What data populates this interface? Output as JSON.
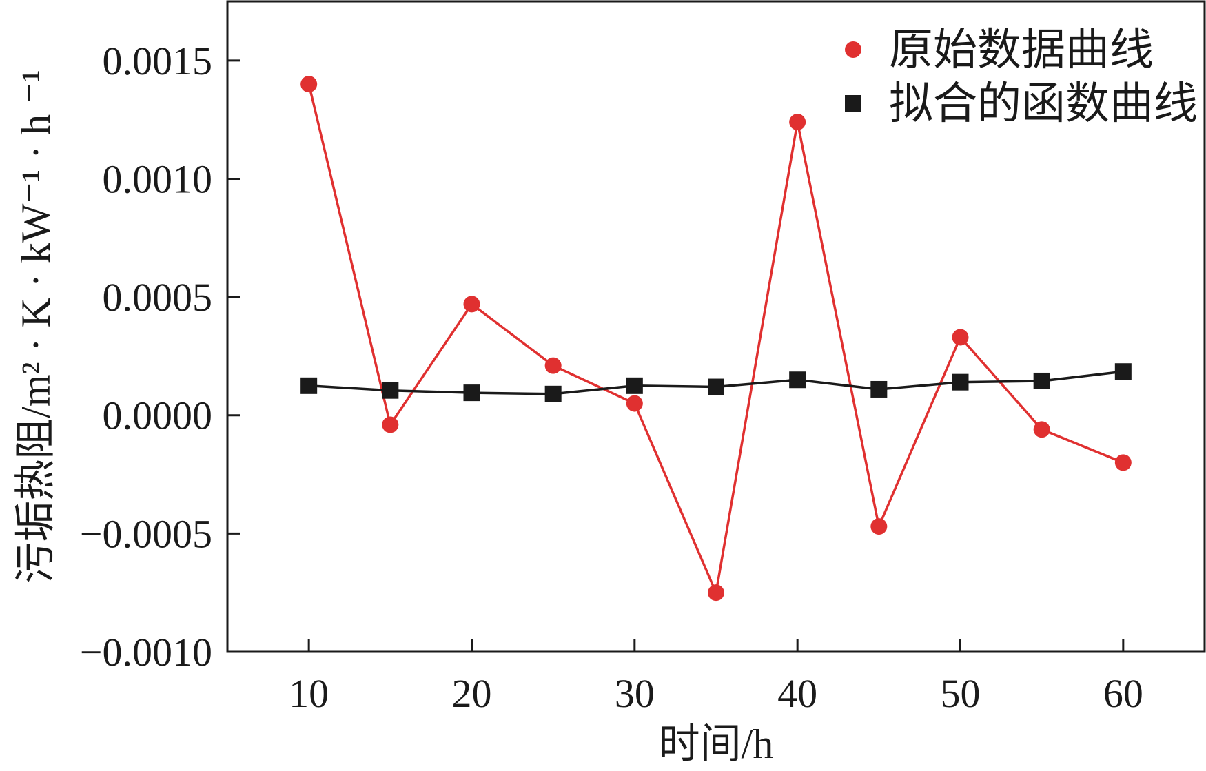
{
  "chart_data": {
    "type": "line",
    "title": "",
    "xlabel": "时间/h",
    "ylabel": "污垢热阻/m² · K · kW⁻¹ · h ⁻¹",
    "xlim": [
      5,
      65
    ],
    "ylim": [
      -0.001,
      0.00175
    ],
    "xticks": [
      10,
      20,
      30,
      40,
      50,
      60
    ],
    "xtick_labels": [
      "10",
      "20",
      "30",
      "40",
      "50",
      "60"
    ],
    "yticks": [
      -0.001,
      -0.0005,
      0.0,
      0.0005,
      0.001,
      0.0015
    ],
    "ytick_labels": [
      "−0.0010",
      "−0.0005",
      "0.0000",
      "0.0005",
      "0.0010",
      "0.0015"
    ],
    "x": [
      10,
      15,
      20,
      25,
      30,
      35,
      40,
      45,
      50,
      55,
      60
    ],
    "grid": false,
    "legend_position": "top-right",
    "series": [
      {
        "name": "原始数据曲线",
        "marker": "circle",
        "color": "#e03030",
        "values": [
          0.0014,
          -4e-05,
          0.00047,
          0.00021,
          5e-05,
          -0.00075,
          0.00124,
          -0.00047,
          0.00033,
          -6e-05,
          -0.0002
        ]
      },
      {
        "name": "拟合的函数曲线",
        "marker": "square",
        "color": "#1a1a1a",
        "values": [
          0.000125,
          0.000105,
          9.5e-05,
          9e-05,
          0.000125,
          0.00012,
          0.00015,
          0.00011,
          0.00014,
          0.000145,
          0.000185
        ]
      }
    ]
  }
}
